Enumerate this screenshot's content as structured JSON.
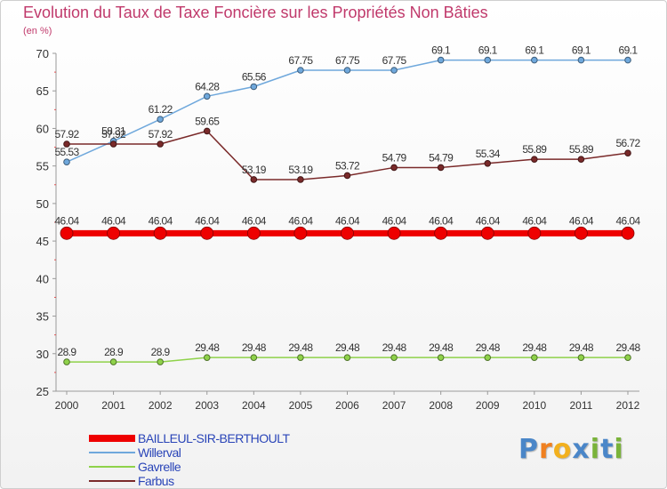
{
  "header": {
    "title": "Evolution du Taux de Taxe Foncière sur les Propriétés Non Bâties",
    "unit": "(en %)"
  },
  "brand": {
    "letters": [
      "P",
      "r",
      "o",
      "x",
      "i",
      "t",
      "i"
    ],
    "colors": [
      "#4a86c8",
      "#f08020",
      "#f2b01e",
      "#4a86c8",
      "#7ab33a",
      "#4a86c8",
      "#7ab33a"
    ]
  },
  "chart_data": {
    "type": "line",
    "x": [
      "2000",
      "2001",
      "2002",
      "2003",
      "2004",
      "2005",
      "2006",
      "2007",
      "2008",
      "2009",
      "2010",
      "2011",
      "2012"
    ],
    "ylim": [
      25,
      70
    ],
    "yticks": [
      25,
      30,
      35,
      40,
      45,
      50,
      55,
      60,
      65,
      70
    ],
    "grid": false,
    "legend": "bottom-left",
    "series": [
      {
        "name": "Willerval",
        "color": "#6fa8dc",
        "values": [
          55.53,
          58.31,
          61.22,
          64.28,
          65.56,
          67.75,
          67.75,
          67.75,
          69.1,
          69.1,
          69.1,
          69.1,
          69.1
        ],
        "labels": [
          "55.53",
          "58.31",
          "61.22",
          "64.28",
          "65.56",
          "67.75",
          "67.75",
          "67.75",
          "69.1",
          "69.1",
          "69.1",
          "69.1",
          "69.1"
        ]
      },
      {
        "name": "Farbus",
        "color": "#7a2a2a",
        "values": [
          57.92,
          57.92,
          57.92,
          59.65,
          53.19,
          53.19,
          53.72,
          54.79,
          54.79,
          55.34,
          55.89,
          55.89,
          56.72
        ],
        "labels": [
          "57.92",
          "57.92",
          "57.92",
          "59.65",
          "53.19",
          "53.19",
          "53.72",
          "54.79",
          "54.79",
          "55.34",
          "55.89",
          "55.89",
          "56.72"
        ]
      },
      {
        "name": "BAILLEUL-SIR-BERTHOULT",
        "color": "#ee0000",
        "values": [
          46.04,
          46.04,
          46.04,
          46.04,
          46.04,
          46.04,
          46.04,
          46.04,
          46.04,
          46.04,
          46.04,
          46.04,
          46.04
        ],
        "labels": [
          "46.04",
          "46.04",
          "46.04",
          "46.04",
          "46.04",
          "46.04",
          "46.04",
          "46.04",
          "46.04",
          "46.04",
          "46.04",
          "46.04",
          "46.04"
        ]
      },
      {
        "name": "Gavrelle",
        "color": "#8fd24a",
        "values": [
          28.9,
          28.9,
          28.9,
          29.48,
          29.48,
          29.48,
          29.48,
          29.48,
          29.48,
          29.48,
          29.48,
          29.48,
          29.48
        ],
        "labels": [
          "28.9",
          "28.9",
          "28.9",
          "29.48",
          "29.48",
          "29.48",
          "29.48",
          "29.48",
          "29.48",
          "29.48",
          "29.48",
          "29.48",
          "29.48"
        ]
      }
    ],
    "legend_entries": [
      {
        "name": "BAILLEUL-SIR-BERTHOULT",
        "color": "#ee0000"
      },
      {
        "name": "Willerval",
        "color": "#6fa8dc"
      },
      {
        "name": "Gavrelle",
        "color": "#8fd24a"
      },
      {
        "name": "Farbus",
        "color": "#7a2a2a"
      }
    ]
  }
}
